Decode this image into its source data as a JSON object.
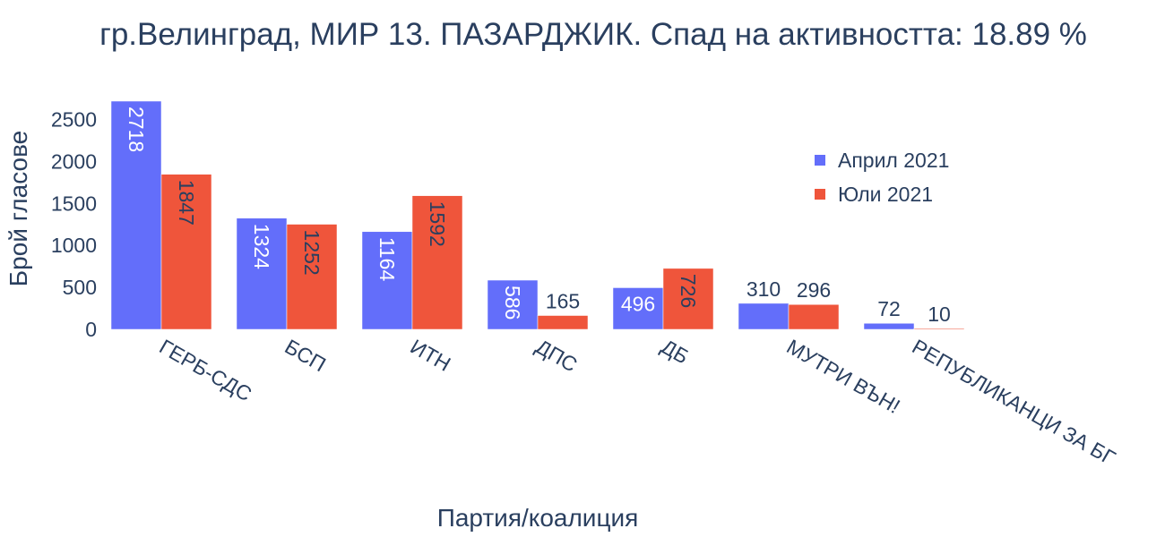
{
  "chart_data": {
    "type": "bar",
    "title": "гр.Велинград, МИР 13. ПАЗАРДЖИК. Спад на активността: 18.89 %",
    "xlabel": "Партия/коалиция",
    "ylabel": "Брой гласове",
    "categories": [
      "ГЕРБ-СДС",
      "БСП",
      "ИТН",
      "ДПС",
      "ДБ",
      "МУТРИ ВЪН!",
      "РЕПУБЛИКАНЦИ ЗА БГ"
    ],
    "series": [
      {
        "name": "Април 2021",
        "color": "#636efa",
        "values": [
          2718,
          1324,
          1164,
          586,
          496,
          310,
          72
        ]
      },
      {
        "name": "Юли 2021",
        "color": "#ef553b",
        "values": [
          1847,
          1252,
          1592,
          165,
          726,
          296,
          10
        ]
      }
    ],
    "ylim": [
      0,
      2718
    ],
    "yticks": [
      0,
      500,
      1000,
      1500,
      2000,
      2500
    ],
    "grid": false,
    "legend_position": "top-right"
  }
}
